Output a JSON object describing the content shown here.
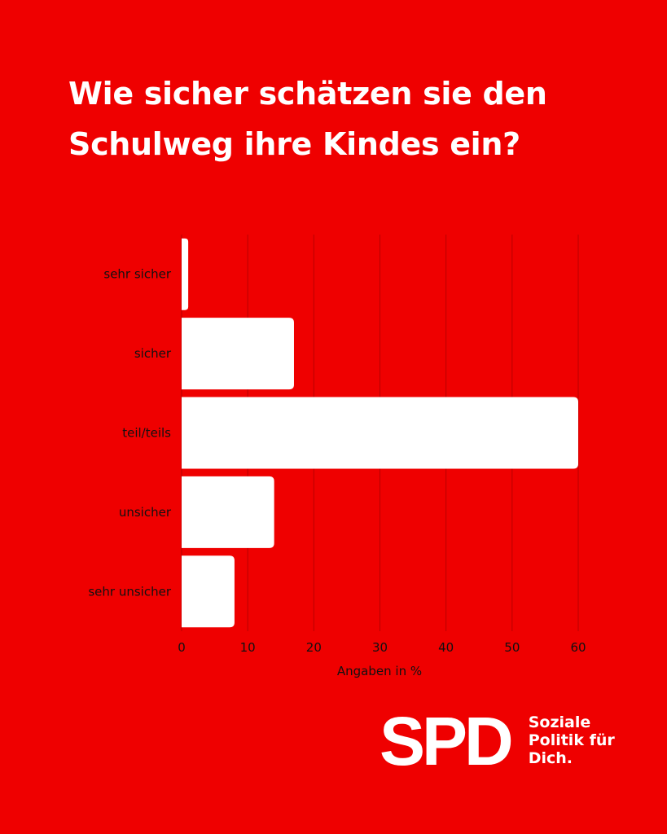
{
  "title_line1": "Wie sicher schätzen sie den",
  "title_line2": "Schulweg ihre Kindes ein?",
  "chart_data": {
    "type": "bar",
    "orientation": "horizontal",
    "title": "Wie sicher schätzen sie den Schulweg ihre Kindes ein?",
    "categories": [
      "sehr sicher",
      "sicher",
      "teil/teils",
      "unsicher",
      "sehr unsicher"
    ],
    "values": [
      1,
      17,
      60,
      14,
      8
    ],
    "xlabel": "Angaben in %",
    "ylabel": "",
    "xlim": [
      0,
      60
    ],
    "xticks": [
      0,
      10,
      20,
      30,
      40,
      50,
      60
    ],
    "grid": true,
    "bar_color": "#ffffff",
    "background": "#ef0000",
    "grid_color": "#b80000"
  },
  "logo": {
    "mark": "SPD",
    "claim": [
      "Soziale",
      "Politik für",
      "Dich."
    ]
  }
}
